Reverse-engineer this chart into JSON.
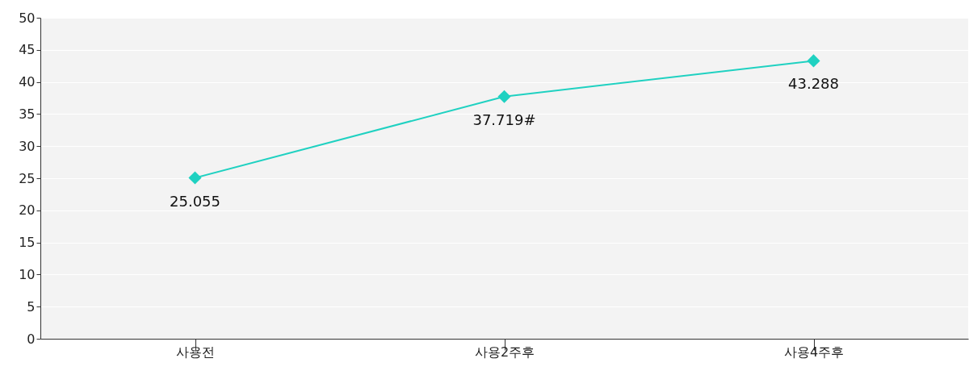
{
  "chart_data": {
    "type": "line",
    "categories": [
      "사용전",
      "사용2주후",
      "사용4주후"
    ],
    "values": [
      25.055,
      37.719,
      43.288
    ],
    "value_labels": [
      "25.055",
      "37.719#",
      "43.288"
    ],
    "color": "#1fd1c1",
    "marker": "diamond",
    "ylim": [
      0,
      50
    ],
    "yticks": [
      0,
      5,
      10,
      15,
      20,
      25,
      30,
      35,
      40,
      45,
      50
    ],
    "grid": "y"
  }
}
